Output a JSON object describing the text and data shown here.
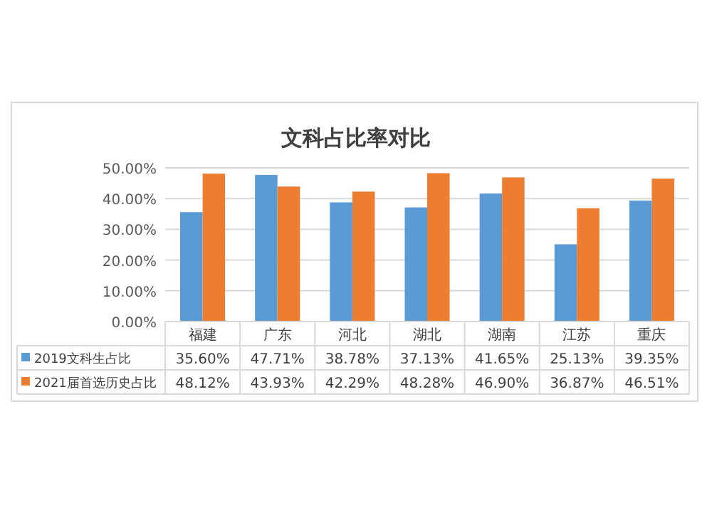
{
  "chart_data": {
    "type": "bar",
    "title": "文科占比率对比",
    "categories": [
      "福建",
      "广东",
      "河北",
      "湖北",
      "湖南",
      "江苏",
      "重庆"
    ],
    "series": [
      {
        "name": "2019文科生占比",
        "color": "#5b9bd5",
        "values": [
          35.6,
          47.71,
          38.78,
          37.13,
          41.65,
          25.13,
          39.35
        ],
        "value_labels": [
          "35.60%",
          "47.71%",
          "38.78%",
          "37.13%",
          "41.65%",
          "25.13%",
          "39.35%"
        ]
      },
      {
        "name": "2021届首选历史占比",
        "color": "#ed7d31",
        "values": [
          48.12,
          43.93,
          42.29,
          48.28,
          46.9,
          36.87,
          46.51
        ],
        "value_labels": [
          "48.12%",
          "43.93%",
          "42.29%",
          "48.28%",
          "46.90%",
          "36.87%",
          "46.51%"
        ]
      }
    ],
    "ylim": [
      0,
      50
    ],
    "yticks": [
      {
        "value": 0,
        "label": "0.00%"
      },
      {
        "value": 10,
        "label": "10.00%"
      },
      {
        "value": 20,
        "label": "20.00%"
      },
      {
        "value": 30,
        "label": "30.00%"
      },
      {
        "value": 40,
        "label": "40.00%"
      },
      {
        "value": 50,
        "label": "50.00%"
      }
    ],
    "grid": "y",
    "legend": "bottom"
  }
}
